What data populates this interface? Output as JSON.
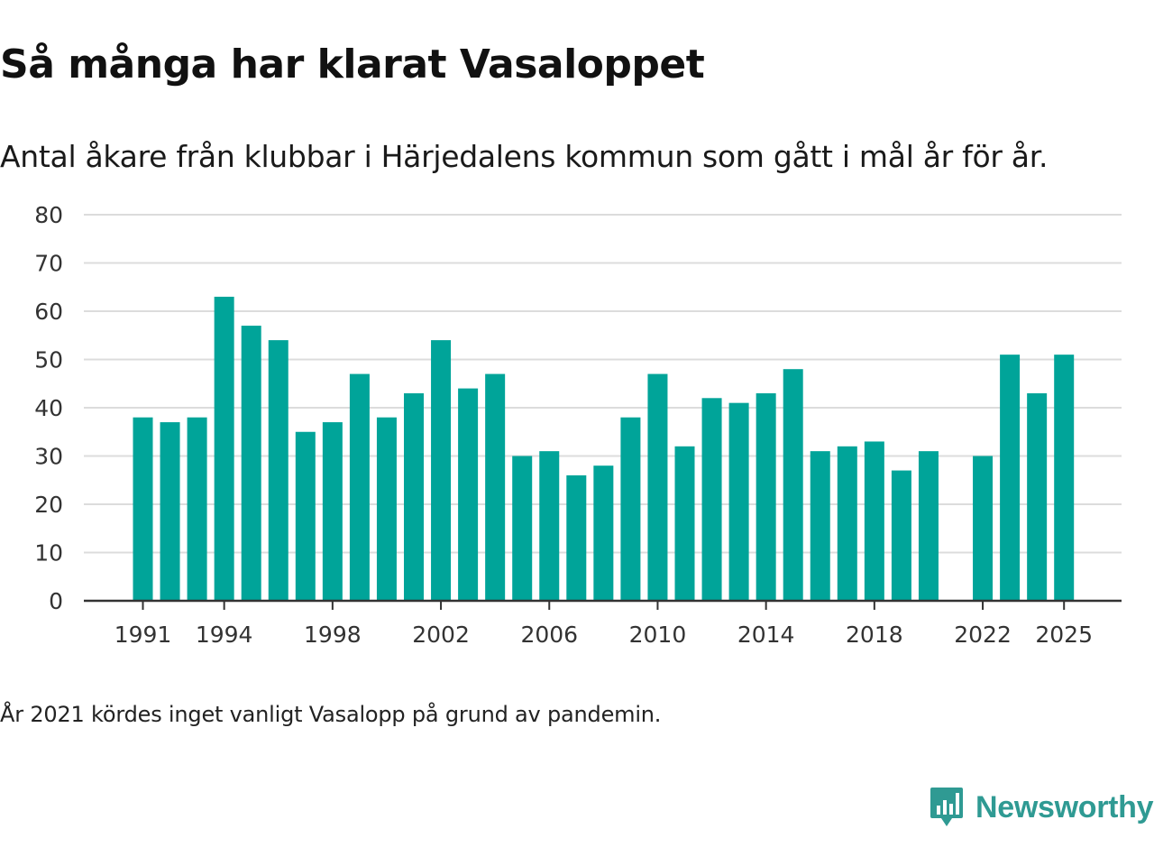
{
  "title": "Så många har klarat Vasaloppet",
  "subtitle": "Antal åkare från klubbar i Härjedalens kommun som gått i mål år för år.",
  "note": "År 2021 kördes inget vanligt Vasalopp på grund av pandemin.",
  "brand": {
    "name": "Newsworthy",
    "color": "#2f9a93",
    "icon": "newsworthy-logo-icon"
  },
  "chart_data": {
    "type": "bar",
    "title": "Så många har klarat Vasaloppet",
    "xlabel": "",
    "ylabel": "",
    "color": "#00a499",
    "ylim": [
      0,
      80
    ],
    "yticks": [
      0,
      10,
      20,
      30,
      40,
      50,
      60,
      70,
      80
    ],
    "xticks": [
      1991,
      1994,
      1998,
      2002,
      2006,
      2010,
      2014,
      2018,
      2022,
      2025
    ],
    "grid": true,
    "categories": [
      1991,
      1992,
      1993,
      1994,
      1995,
      1996,
      1997,
      1998,
      1999,
      2000,
      2001,
      2002,
      2003,
      2004,
      2005,
      2006,
      2007,
      2008,
      2009,
      2010,
      2011,
      2012,
      2013,
      2014,
      2015,
      2016,
      2017,
      2018,
      2019,
      2020,
      2021,
      2022,
      2023,
      2024,
      2025
    ],
    "values": [
      38,
      37,
      38,
      63,
      57,
      54,
      35,
      37,
      47,
      38,
      43,
      54,
      44,
      47,
      30,
      31,
      26,
      28,
      38,
      47,
      32,
      42,
      41,
      43,
      48,
      31,
      32,
      33,
      27,
      31,
      null,
      30,
      51,
      43,
      51
    ]
  }
}
